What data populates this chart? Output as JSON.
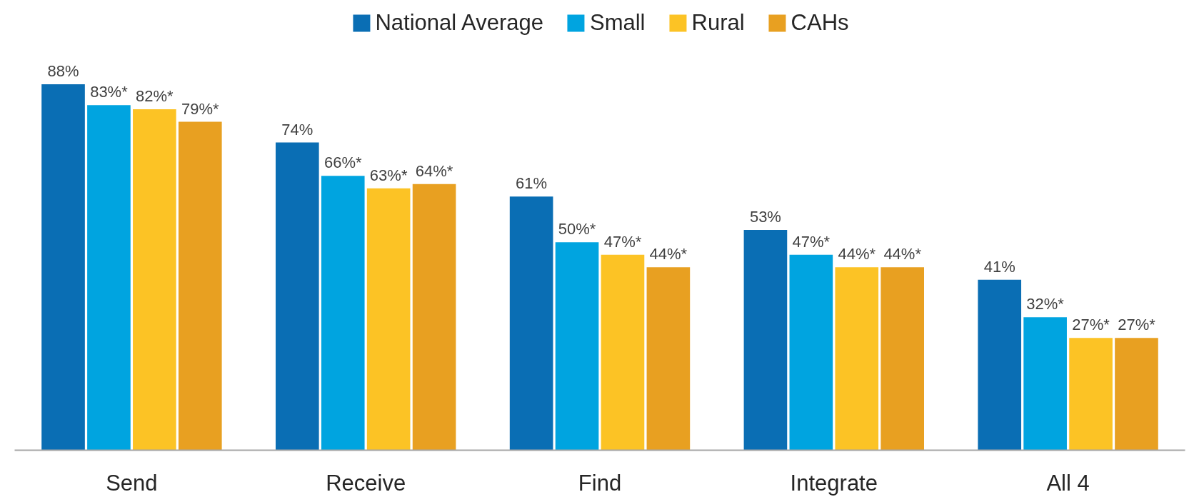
{
  "chart_data": {
    "type": "bar",
    "categories": [
      "Send",
      "Receive",
      "Find",
      "Integrate",
      "All 4"
    ],
    "series": [
      {
        "name": "National Average",
        "color": "#0a6eb4",
        "values": [
          88,
          74,
          61,
          53,
          41
        ],
        "value_labels": [
          "88%",
          "74%",
          "61%",
          "53%",
          "41%"
        ]
      },
      {
        "name": "Small",
        "color": "#00a4e0",
        "values": [
          83,
          66,
          50,
          47,
          32
        ],
        "value_labels": [
          "83%*",
          "66%*",
          "50%*",
          "47%*",
          "32%*"
        ]
      },
      {
        "name": "Rural",
        "color": "#fcc325",
        "values": [
          82,
          63,
          47,
          44,
          27
        ],
        "value_labels": [
          "82%*",
          "63%*",
          "47%*",
          "44%*",
          "27%*"
        ]
      },
      {
        "name": "CAHs",
        "color": "#e8a021",
        "values": [
          79,
          64,
          44,
          44,
          27
        ],
        "value_labels": [
          "79%*",
          "64%*",
          "44%*",
          "44%*",
          "27%*"
        ]
      }
    ],
    "grid": false,
    "legend": "top"
  }
}
